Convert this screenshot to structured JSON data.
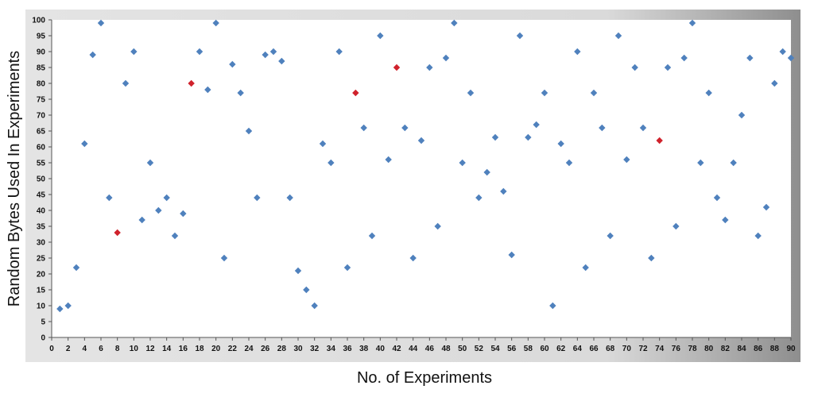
{
  "chart_data": {
    "type": "scatter",
    "xlabel": "No. of Experiments",
    "ylabel": "Random Bytes Used In Experiments",
    "xlim": [
      0,
      90
    ],
    "ylim": [
      0,
      100
    ],
    "x_ticks": [
      0,
      2,
      4,
      6,
      8,
      10,
      12,
      14,
      16,
      18,
      20,
      22,
      24,
      26,
      28,
      30,
      32,
      34,
      36,
      38,
      40,
      42,
      44,
      46,
      48,
      50,
      52,
      54,
      56,
      58,
      60,
      62,
      64,
      66,
      68,
      70,
      72,
      74,
      76,
      78,
      80,
      82,
      84,
      86,
      88,
      90
    ],
    "y_ticks": [
      0,
      5,
      10,
      15,
      20,
      25,
      30,
      35,
      40,
      45,
      50,
      55,
      60,
      65,
      70,
      75,
      80,
      85,
      90,
      95,
      100
    ],
    "grid": false,
    "colors": {
      "normal": "#4f81bd",
      "highlight": "#d0222c"
    },
    "series": [
      {
        "color": "#4f81bd",
        "points": [
          [
            1,
            9
          ],
          [
            2,
            10
          ],
          [
            3,
            22
          ],
          [
            4,
            61
          ],
          [
            5,
            89
          ],
          [
            6,
            99
          ],
          [
            7,
            44
          ],
          [
            9,
            80
          ],
          [
            10,
            90
          ],
          [
            11,
            37
          ],
          [
            12,
            55
          ],
          [
            13,
            40
          ],
          [
            14,
            44
          ],
          [
            15,
            32
          ],
          [
            16,
            39
          ],
          [
            18,
            90
          ],
          [
            19,
            78
          ],
          [
            20,
            99
          ],
          [
            21,
            25
          ],
          [
            22,
            86
          ],
          [
            23,
            77
          ],
          [
            24,
            65
          ],
          [
            25,
            44
          ],
          [
            26,
            89
          ],
          [
            27,
            90
          ],
          [
            28,
            87
          ],
          [
            29,
            44
          ],
          [
            30,
            21
          ],
          [
            31,
            15
          ],
          [
            32,
            10
          ],
          [
            33,
            61
          ],
          [
            34,
            55
          ],
          [
            35,
            90
          ],
          [
            36,
            22
          ],
          [
            38,
            66
          ],
          [
            39,
            32
          ],
          [
            40,
            95
          ],
          [
            41,
            56
          ],
          [
            43,
            66
          ],
          [
            44,
            25
          ],
          [
            45,
            62
          ],
          [
            46,
            85
          ],
          [
            47,
            35
          ],
          [
            48,
            88
          ],
          [
            49,
            99
          ],
          [
            50,
            55
          ],
          [
            51,
            77
          ],
          [
            52,
            44
          ],
          [
            53,
            52
          ],
          [
            54,
            63
          ],
          [
            55,
            46
          ],
          [
            56,
            26
          ],
          [
            57,
            95
          ],
          [
            58,
            63
          ],
          [
            59,
            67
          ],
          [
            60,
            77
          ],
          [
            61,
            10
          ],
          [
            62,
            61
          ],
          [
            63,
            55
          ],
          [
            64,
            90
          ],
          [
            65,
            22
          ],
          [
            66,
            77
          ],
          [
            67,
            66
          ],
          [
            68,
            32
          ],
          [
            69,
            95
          ],
          [
            70,
            56
          ],
          [
            71,
            85
          ],
          [
            72,
            66
          ],
          [
            73,
            25
          ],
          [
            75,
            85
          ],
          [
            76,
            35
          ],
          [
            77,
            88
          ],
          [
            78,
            99
          ],
          [
            79,
            55
          ],
          [
            80,
            77
          ],
          [
            81,
            44
          ],
          [
            82,
            37
          ],
          [
            83,
            55
          ],
          [
            84,
            70
          ],
          [
            85,
            88
          ],
          [
            86,
            32
          ],
          [
            87,
            41
          ],
          [
            88,
            80
          ],
          [
            89,
            90
          ],
          [
            90,
            88
          ]
        ]
      },
      {
        "color": "#d0222c",
        "points": [
          [
            8,
            33
          ],
          [
            17,
            80
          ],
          [
            37,
            77
          ],
          [
            42,
            85
          ],
          [
            74,
            62
          ]
        ]
      }
    ]
  }
}
